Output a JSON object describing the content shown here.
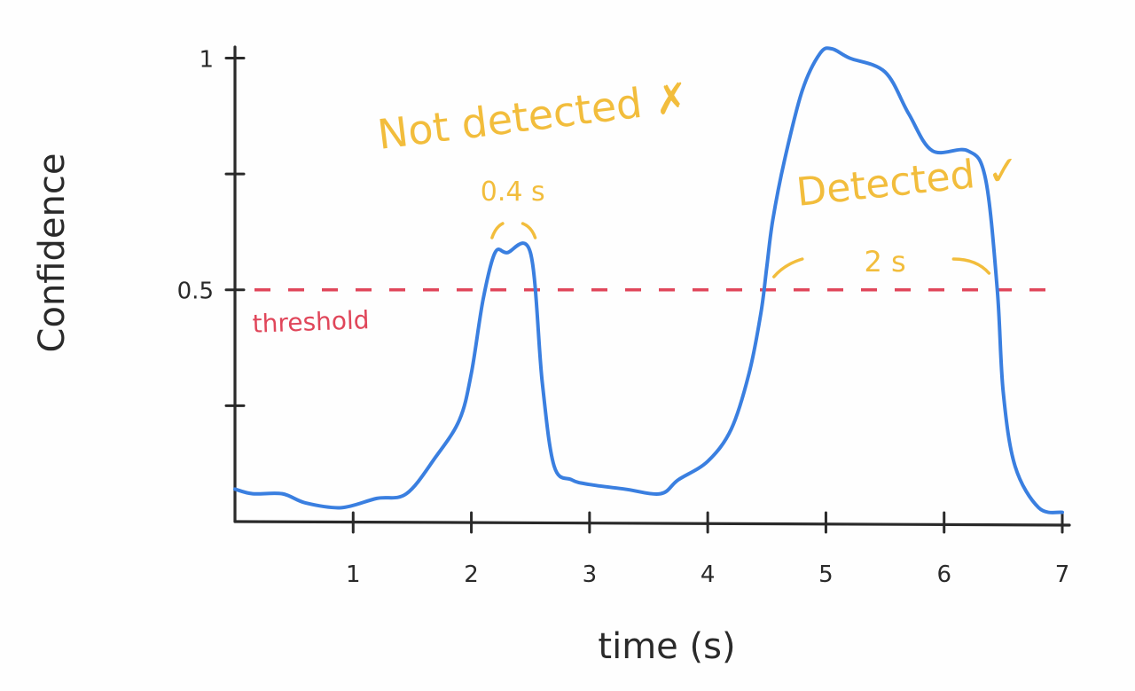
{
  "chart_data": {
    "type": "line",
    "xlabel": "time (s)",
    "ylabel": "Confidence",
    "xlim": [
      0,
      7
    ],
    "ylim": [
      0,
      1.02
    ],
    "x_ticks": [
      1,
      2,
      3,
      4,
      5,
      6,
      7
    ],
    "y_ticks": [
      {
        "value": 0.25,
        "label": ""
      },
      {
        "value": 0.5,
        "label": "0.5"
      },
      {
        "value": 0.75,
        "label": ""
      },
      {
        "value": 1.0,
        "label": "1"
      }
    ],
    "series": [
      {
        "color": "#3a7fe0",
        "x": [
          0,
          0.15,
          0.4,
          0.6,
          0.9,
          1.2,
          1.45,
          1.7,
          1.9,
          2.0,
          2.1,
          2.2,
          2.3,
          2.5,
          2.6,
          2.7,
          2.85,
          3.0,
          3.3,
          3.6,
          3.75,
          4.0,
          4.2,
          4.35,
          4.45,
          4.5,
          4.55,
          4.65,
          4.8,
          4.95,
          5.05,
          5.2,
          5.5,
          5.7,
          5.9,
          6.2,
          6.35,
          6.45,
          6.5,
          6.6,
          6.8,
          7.0
        ],
        "y": [
          0.07,
          0.06,
          0.06,
          0.04,
          0.03,
          0.05,
          0.06,
          0.14,
          0.22,
          0.32,
          0.48,
          0.58,
          0.58,
          0.58,
          0.3,
          0.12,
          0.09,
          0.08,
          0.07,
          0.06,
          0.09,
          0.13,
          0.2,
          0.32,
          0.45,
          0.55,
          0.65,
          0.78,
          0.93,
          1.01,
          1.02,
          1.0,
          0.97,
          0.88,
          0.8,
          0.8,
          0.74,
          0.5,
          0.28,
          0.12,
          0.03,
          0.02
        ]
      }
    ],
    "threshold": {
      "value": 0.5,
      "label": "threshold",
      "color": "#e0465a"
    },
    "annotations": [
      {
        "text": "Not detected ✗",
        "duration": "0.4 s",
        "x_start": 2.1,
        "x_end": 2.6,
        "color": "#f2bd3c"
      },
      {
        "text": "Detected ✓",
        "duration": "2 s",
        "x_start": 4.5,
        "x_end": 6.5,
        "color": "#f2bd3c"
      }
    ],
    "grid": false,
    "legend": "none"
  }
}
